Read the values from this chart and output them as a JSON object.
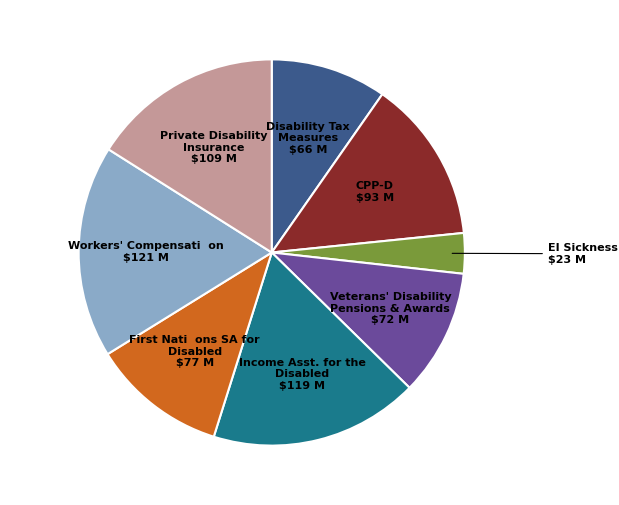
{
  "labels": [
    "Disability Tax\nMeasures\n$66 M",
    "CPP-D\n$93 M",
    "EI Sickness\n$23 M",
    "Veterans' Disability\nPensions & Awards\n$72 M",
    "Income Asst. for the\nDisabled\n$119 M",
    "First Nati  ons SA for\nDisabled\n$77 M",
    "Workers' Compensati  on\n$121 M",
    "Private Disability\nInsurance\n$109 M"
  ],
  "values": [
    66,
    93,
    23,
    72,
    119,
    77,
    121,
    109
  ],
  "colors": [
    "#3C5A8C",
    "#8B2A2A",
    "#7A9A3A",
    "#6B4A9B",
    "#1A7B8C",
    "#D2681E",
    "#8AAAC8",
    "#C49898"
  ],
  "figsize": [
    6.19,
    5.05
  ],
  "dpi": 100,
  "label_radii": [
    0.62,
    0.62,
    0.0,
    0.68,
    0.65,
    0.65,
    0.65,
    0.62
  ],
  "label_fontsize": 8.0
}
